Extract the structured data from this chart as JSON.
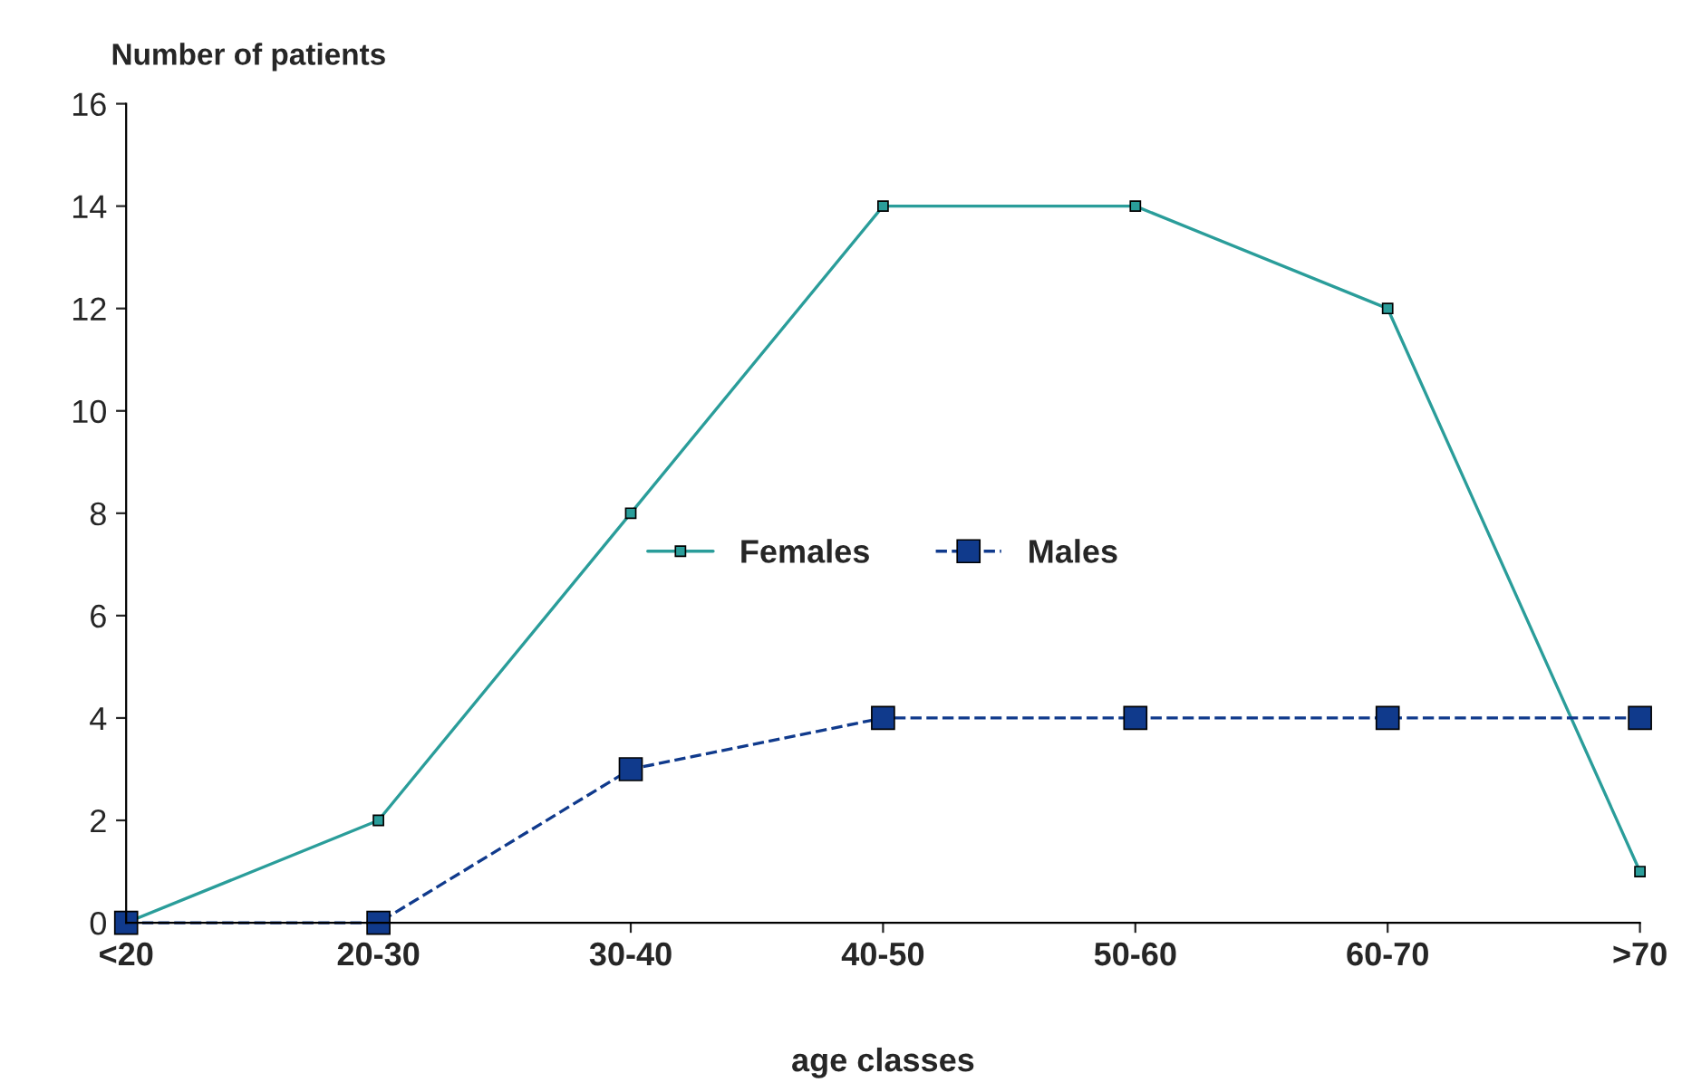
{
  "chart_data": {
    "type": "line",
    "xlabel": "age classes",
    "ylabel": "Number of patients",
    "categories": [
      "<20",
      "20-30",
      "30-40",
      "40-50",
      "50-60",
      "60-70",
      ">70"
    ],
    "series": [
      {
        "name": "Females",
        "color": "#2a9d9a",
        "marker": "square",
        "line_style": "solid",
        "values": [
          0,
          2,
          8,
          14,
          14,
          12,
          1
        ]
      },
      {
        "name": "Males",
        "color": "#103a8c",
        "marker": "square",
        "line_style": "dashed",
        "values": [
          0,
          0,
          3,
          4,
          4,
          4,
          4
        ]
      }
    ],
    "ylim": [
      0,
      16
    ],
    "yticks": [
      0,
      2,
      4,
      6,
      8,
      10,
      12,
      14,
      16
    ],
    "grid": false,
    "legend": "center"
  }
}
